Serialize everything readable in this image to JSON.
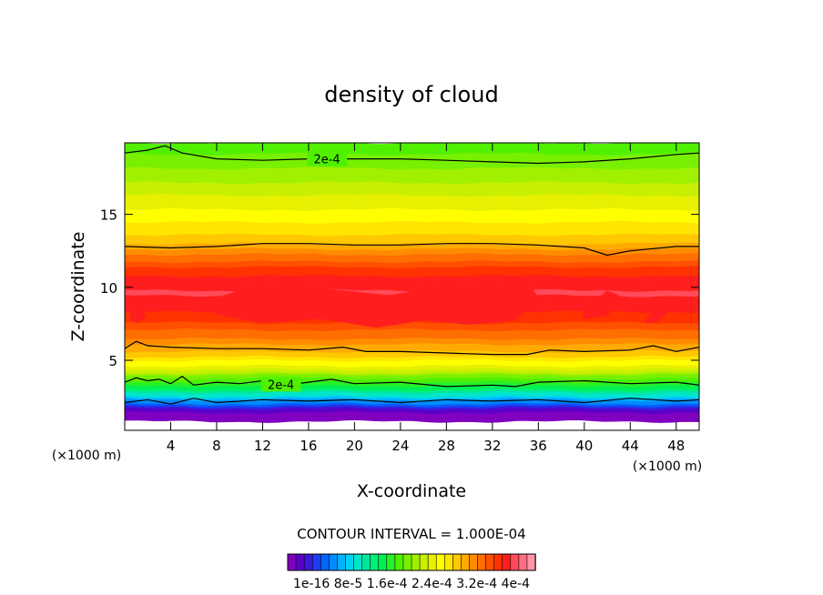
{
  "chart_data": {
    "type": "heatmap",
    "title": "density of cloud",
    "xlabel": "X-coordinate",
    "ylabel": "Z-coordinate",
    "x_unit_left": "(×1000 m)",
    "x_unit_right": "(×1000 m)",
    "xlim": [
      0,
      50
    ],
    "ylim": [
      0.2,
      19.9
    ],
    "x_ticks": [
      4,
      8,
      12,
      16,
      20,
      24,
      28,
      32,
      36,
      40,
      44,
      48
    ],
    "x_tick_labels": [
      "4",
      "8",
      "12",
      "16",
      "20",
      "24",
      "28",
      "32",
      "36",
      "40",
      "44",
      "48"
    ],
    "y_ticks": [
      5,
      10,
      15
    ],
    "y_tick_labels": [
      "5",
      "10",
      "15"
    ],
    "contour_interval_text": "CONTOUR INTERVAL = 1.000E-04",
    "contour_labels": [
      "2e-4",
      "2e-4"
    ],
    "colorbar_labels": [
      "1e-16",
      "8e-5",
      "1.6e-4",
      "2.4e-4",
      "3.2e-4",
      "4e-4"
    ],
    "colorbar_label_text": "1e-16  8e-5  1.6e-4  2.4e-4  3.2e-4  4e-4",
    "colorbar_colors": [
      "#8000c0",
      "#5a00c8",
      "#3c18d8",
      "#1e3cf0",
      "#0064ff",
      "#008cff",
      "#00b4ff",
      "#00d2f0",
      "#00e6c8",
      "#00e6a0",
      "#00f078",
      "#00f050",
      "#28f028",
      "#50f000",
      "#78f000",
      "#a0f000",
      "#c8f000",
      "#e6f000",
      "#ffff00",
      "#ffe600",
      "#ffc800",
      "#ffaa00",
      "#ff8c00",
      "#ff6e00",
      "#ff5000",
      "#ff3200",
      "#ff1e1e",
      "#ff4b5a",
      "#ff6e82",
      "#ff96a5"
    ],
    "color_range": [
      1e-16,
      0.00042
    ],
    "profile": {
      "z_km": [
        0.2,
        0.8,
        1.2,
        1.6,
        2.2,
        3.0,
        3.8,
        4.8,
        5.8,
        6.8,
        7.8,
        8.8,
        9.6,
        10.4,
        11.2,
        12.0,
        12.8,
        13.6,
        14.5,
        15.5,
        16.5,
        17.5,
        18.5,
        19.2,
        19.9
      ],
      "density": [
        0,
        0,
        1e-16,
        2e-05,
        8e-05,
        0.00015,
        0.0002,
        0.00026,
        0.0003,
        0.00033,
        0.000355,
        0.000372,
        0.00038,
        0.000372,
        0.000355,
        0.00033,
        0.0003,
        0.00028,
        0.000265,
        0.00025,
        0.000235,
        0.00022,
        0.000205,
        0.000195,
        0.000185
      ]
    },
    "contours": [
      {
        "label": "2e-4",
        "x": [
          0,
          2,
          3.5,
          5,
          8,
          12,
          16,
          20,
          24,
          28,
          32,
          36,
          40,
          44,
          48,
          50
        ],
        "z": [
          19.2,
          19.4,
          19.7,
          19.2,
          18.8,
          18.7,
          18.8,
          18.8,
          18.8,
          18.7,
          18.6,
          18.5,
          18.6,
          18.8,
          19.1,
          19.2
        ]
      },
      {
        "label": "",
        "x": [
          0,
          4,
          8,
          12,
          16,
          20,
          24,
          28,
          32,
          36,
          40,
          42,
          44,
          48,
          50
        ],
        "z": [
          12.8,
          12.7,
          12.8,
          13.0,
          13.0,
          12.9,
          12.9,
          13.0,
          13.0,
          12.9,
          12.7,
          12.2,
          12.5,
          12.8,
          12.8
        ]
      },
      {
        "label": "",
        "x": [
          0,
          1,
          2,
          4,
          8,
          12,
          16,
          19,
          21,
          24,
          28,
          32,
          35,
          37,
          40,
          44,
          46,
          48,
          50
        ],
        "z": [
          5.8,
          6.3,
          6.0,
          5.9,
          5.8,
          5.8,
          5.7,
          5.9,
          5.6,
          5.6,
          5.5,
          5.4,
          5.4,
          5.7,
          5.6,
          5.7,
          6.0,
          5.6,
          5.9
        ]
      },
      {
        "label": "2e-4",
        "x": [
          0,
          1,
          2,
          3,
          4,
          5,
          6,
          8,
          10,
          12,
          14,
          16,
          18,
          20,
          24,
          28,
          32,
          34,
          36,
          40,
          44,
          48,
          50
        ],
        "z": [
          3.5,
          3.8,
          3.6,
          3.7,
          3.4,
          3.9,
          3.3,
          3.5,
          3.4,
          3.6,
          3.3,
          3.5,
          3.7,
          3.4,
          3.5,
          3.2,
          3.3,
          3.2,
          3.5,
          3.6,
          3.4,
          3.5,
          3.3
        ]
      },
      {
        "label": "",
        "x": [
          0,
          2,
          4,
          6,
          8,
          12,
          16,
          20,
          24,
          28,
          32,
          36,
          40,
          44,
          48,
          50
        ],
        "z": [
          2.1,
          2.3,
          2.0,
          2.4,
          2.1,
          2.3,
          2.2,
          2.3,
          2.1,
          2.3,
          2.2,
          2.3,
          2.1,
          2.4,
          2.2,
          2.3
        ]
      }
    ],
    "core_blobs": [
      {
        "x": [
          7,
          12,
          18,
          23,
          27,
          31,
          35,
          36,
          34,
          30,
          26,
          22,
          17,
          12,
          8
        ],
        "z": [
          9.0,
          10.2,
          9.8,
          9.4,
          9.9,
          10.0,
          10.4,
          9.2,
          7.8,
          7.5,
          7.8,
          7.3,
          7.9,
          7.6,
          8.2
        ]
      },
      {
        "x": [
          40,
          42,
          43,
          42,
          40
        ],
        "z": [
          8.5,
          9.7,
          9.4,
          8.1,
          7.9
        ]
      },
      {
        "x": [
          45.6,
          46.8,
          47.3,
          46.4,
          45.4
        ],
        "z": [
          8.0,
          8.7,
          8.4,
          7.7,
          7.6
        ]
      },
      {
        "x": [
          0.6,
          1.4,
          1.8,
          1.1,
          0.5
        ],
        "z": [
          8.3,
          8.6,
          8.0,
          7.6,
          7.8
        ]
      }
    ]
  }
}
